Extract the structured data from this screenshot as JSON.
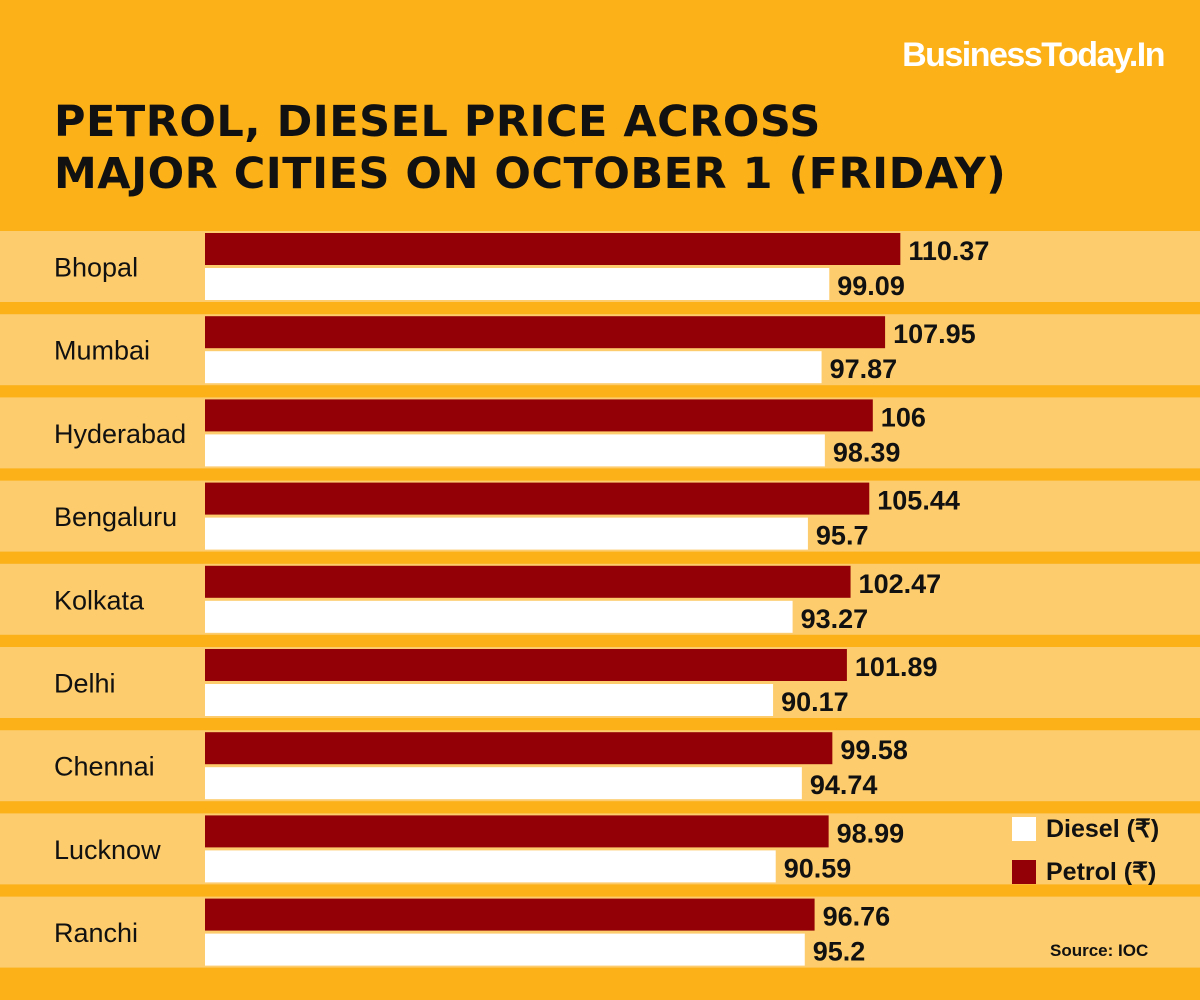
{
  "brand": "BusinessToday.In",
  "title_lines": [
    "PETROL, DIESEL PRICE ACROSS",
    "MAJOR CITIES ON OCTOBER 1 (FRIDAY)"
  ],
  "source": "Source: IOC",
  "colors": {
    "background": "#fcb119",
    "row_band": "#fdcc6c",
    "petrol": "#930005",
    "diesel": "#ffffff"
  },
  "chart_data": {
    "type": "bar",
    "orientation": "horizontal",
    "categories": [
      "Bhopal",
      "Mumbai",
      "Hyderabad",
      "Bengaluru",
      "Kolkata",
      "Delhi",
      "Chennai",
      "Lucknow",
      "Ranchi"
    ],
    "series": [
      {
        "name": "Petrol (₹)",
        "values": [
          110.37,
          107.95,
          106,
          105.44,
          102.47,
          101.89,
          99.58,
          98.99,
          96.76
        ],
        "labels": [
          "110.37",
          "107.95",
          "106",
          "105.44",
          "102.47",
          "101.89",
          "99.58",
          "98.99",
          "96.76"
        ]
      },
      {
        "name": "Diesel (₹)",
        "values": [
          99.09,
          97.87,
          98.39,
          95.7,
          93.27,
          90.17,
          94.74,
          90.59,
          95.2
        ],
        "labels": [
          "99.09",
          "97.87",
          "98.39",
          "95.7",
          "93.27",
          "90.17",
          "94.74",
          "90.59",
          "95.2"
        ]
      }
    ],
    "legend": [
      {
        "name": "Diesel (₹)",
        "color": "#ffffff"
      },
      {
        "name": "Petrol (₹)",
        "color": "#930005"
      }
    ],
    "legend_position": "bottom-right",
    "grid": false
  }
}
